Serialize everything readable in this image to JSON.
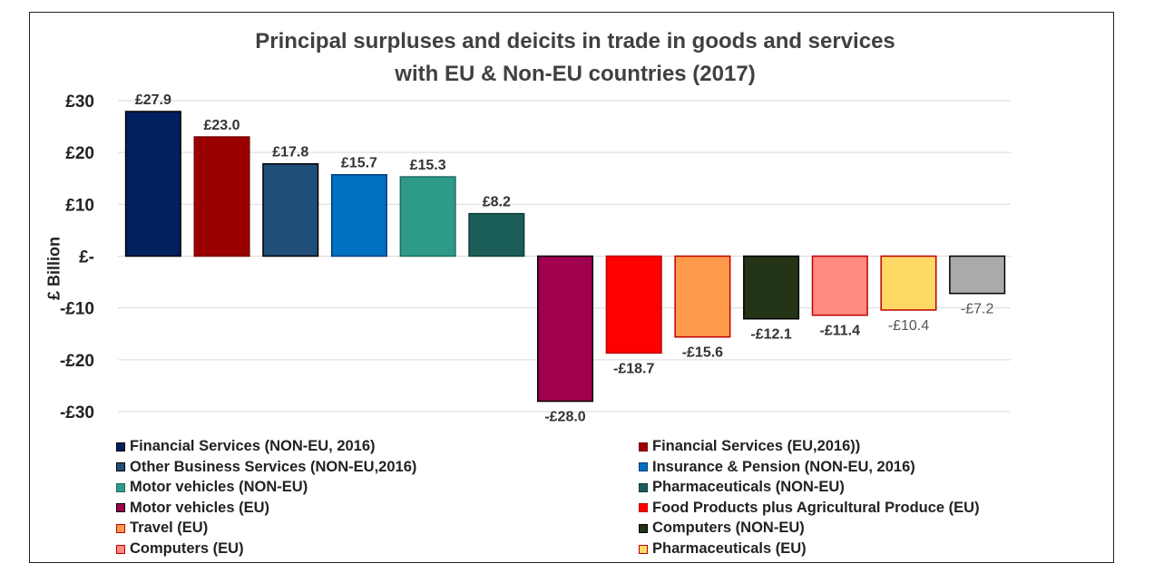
{
  "chart_data": {
    "type": "bar",
    "title_lines": [
      "Principal surpluses and deicits in trade in goods and services",
      "with EU & Non-EU countries (2017)"
    ],
    "ylabel": "£ Billion",
    "ylim": [
      -30,
      30
    ],
    "yticks": [
      {
        "value": 30,
        "label": "£30"
      },
      {
        "value": 20,
        "label": "£20"
      },
      {
        "value": 10,
        "label": "£10"
      },
      {
        "value": 0,
        "label": "£-"
      },
      {
        "value": -10,
        "label": "-£10"
      },
      {
        "value": -20,
        "label": "-£20"
      },
      {
        "value": -30,
        "label": "-£30"
      }
    ],
    "grid": true,
    "legend_position": "bottom",
    "categories": [
      "Financial Services (NON-EU, 2016)",
      "Financial Services (EU,2016))",
      "Other Business Services (NON-EU,2016)",
      "Insurance & Pension (NON-EU, 2016)",
      "Motor vehicles (NON-EU)",
      "Pharmaceuticals (NON-EU)",
      "Motor vehicles (EU)",
      "Food Products plus Agricultural Produce (EU)",
      "Travel (EU)",
      "Computers (NON-EU)",
      "Computers (EU)",
      "Pharmaceuticals (EU)",
      ""
    ],
    "values": [
      27.9,
      23.0,
      17.8,
      15.7,
      15.3,
      8.2,
      -28.0,
      -18.7,
      -15.6,
      -12.1,
      -11.4,
      -10.4,
      -7.2
    ],
    "data_labels": [
      "£27.9",
      "£23.0",
      "£17.8",
      "£15.7",
      "£15.3",
      "£8.2",
      "-£28.0",
      "-£18.7",
      "-£15.6",
      "-£12.1",
      "-£11.4",
      "-£10.4",
      "-£7.2"
    ],
    "label_bold": [
      true,
      true,
      true,
      true,
      true,
      true,
      true,
      true,
      true,
      true,
      true,
      false,
      false
    ],
    "colors": [
      "#002060",
      "#9b0000",
      "#1f4e79",
      "#0070c0",
      "#2e9b8a",
      "#1b5e58",
      "#a0004e",
      "#ff0000",
      "#ff9a4d",
      "#233417",
      "#ff8a80",
      "#ffd966",
      "#aaaaaa"
    ],
    "border_colors": [
      "#000000",
      "#7a0000",
      "#000000",
      "#003c7a",
      "#1e6a5e",
      "#0f3d39",
      "#000000",
      "#c00000",
      "#c00000",
      "#000000",
      "#c00000",
      "#c00000",
      "#000000"
    ],
    "legend_order": [
      0,
      1,
      2,
      3,
      4,
      5,
      6,
      7,
      8,
      9,
      10,
      11
    ]
  }
}
